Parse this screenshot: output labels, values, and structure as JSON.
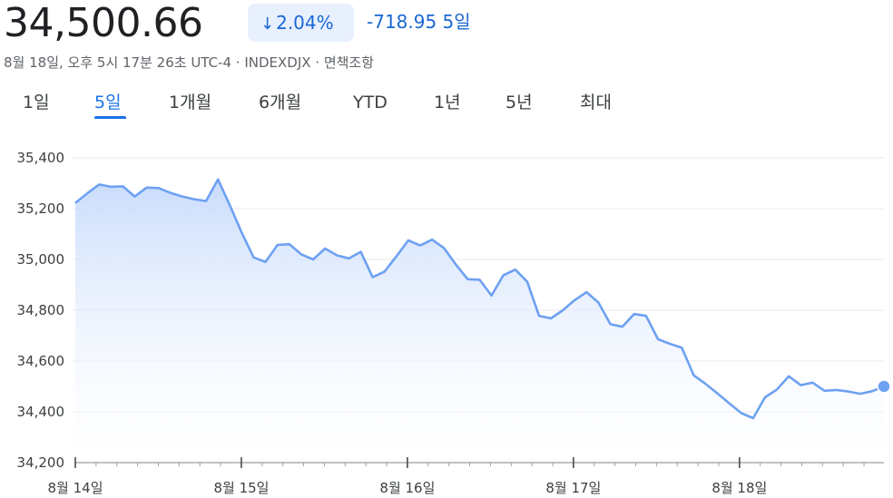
{
  "header": {
    "price": "34,500.66",
    "change_percent": "2.04%",
    "change_arrow_icon": "down-arrow-icon",
    "change_value": "-718.95 5일",
    "meta": "8월 18일, 오후 5시 17분 26초 UTC-4 · INDEXDJX · 면책조항"
  },
  "tabs": [
    "1일",
    "5일",
    "1개월",
    "6개월",
    "YTD",
    "1년",
    "5년",
    "최대"
  ],
  "active_tab": "5일",
  "colors": {
    "accent": "#1a73e8",
    "line": "#6ea1f2",
    "fill": "#d2e3fc",
    "badge_bg": "#e8f0fe"
  },
  "chart_data": {
    "type": "area",
    "title": "",
    "xlabel": "",
    "ylabel": "",
    "ylim": [
      34200,
      35400
    ],
    "y_ticks": [
      "35,400",
      "35,200",
      "35,000",
      "34,800",
      "34,600",
      "34,400",
      "34,200"
    ],
    "x_ticks": [
      "8월 14일",
      "8월 15일",
      "8월 16일",
      "8월 17일",
      "8월 18일"
    ],
    "grid": true,
    "series": [
      {
        "values": [
          35222,
          35260,
          35295,
          35286,
          35288,
          35248,
          35283,
          35281,
          35262,
          35248,
          35237,
          35230,
          35315,
          35213,
          35105,
          35008,
          34990,
          35057,
          35060,
          35020,
          35000,
          35043,
          35016,
          35004,
          35030,
          34930,
          34952,
          35012,
          35075,
          35055,
          35078,
          35045,
          34980,
          34922,
          34920,
          34858,
          34938,
          34960,
          34913,
          34778,
          34768,
          34800,
          34840,
          34871,
          34830,
          34745,
          34735,
          34785,
          34778,
          34686,
          34668,
          34652,
          34544,
          34510,
          34472,
          34433,
          34395,
          34375,
          34457,
          34488,
          34540,
          34505,
          34515,
          34483,
          34486,
          34480,
          34471,
          34481,
          34500
        ]
      }
    ]
  }
}
